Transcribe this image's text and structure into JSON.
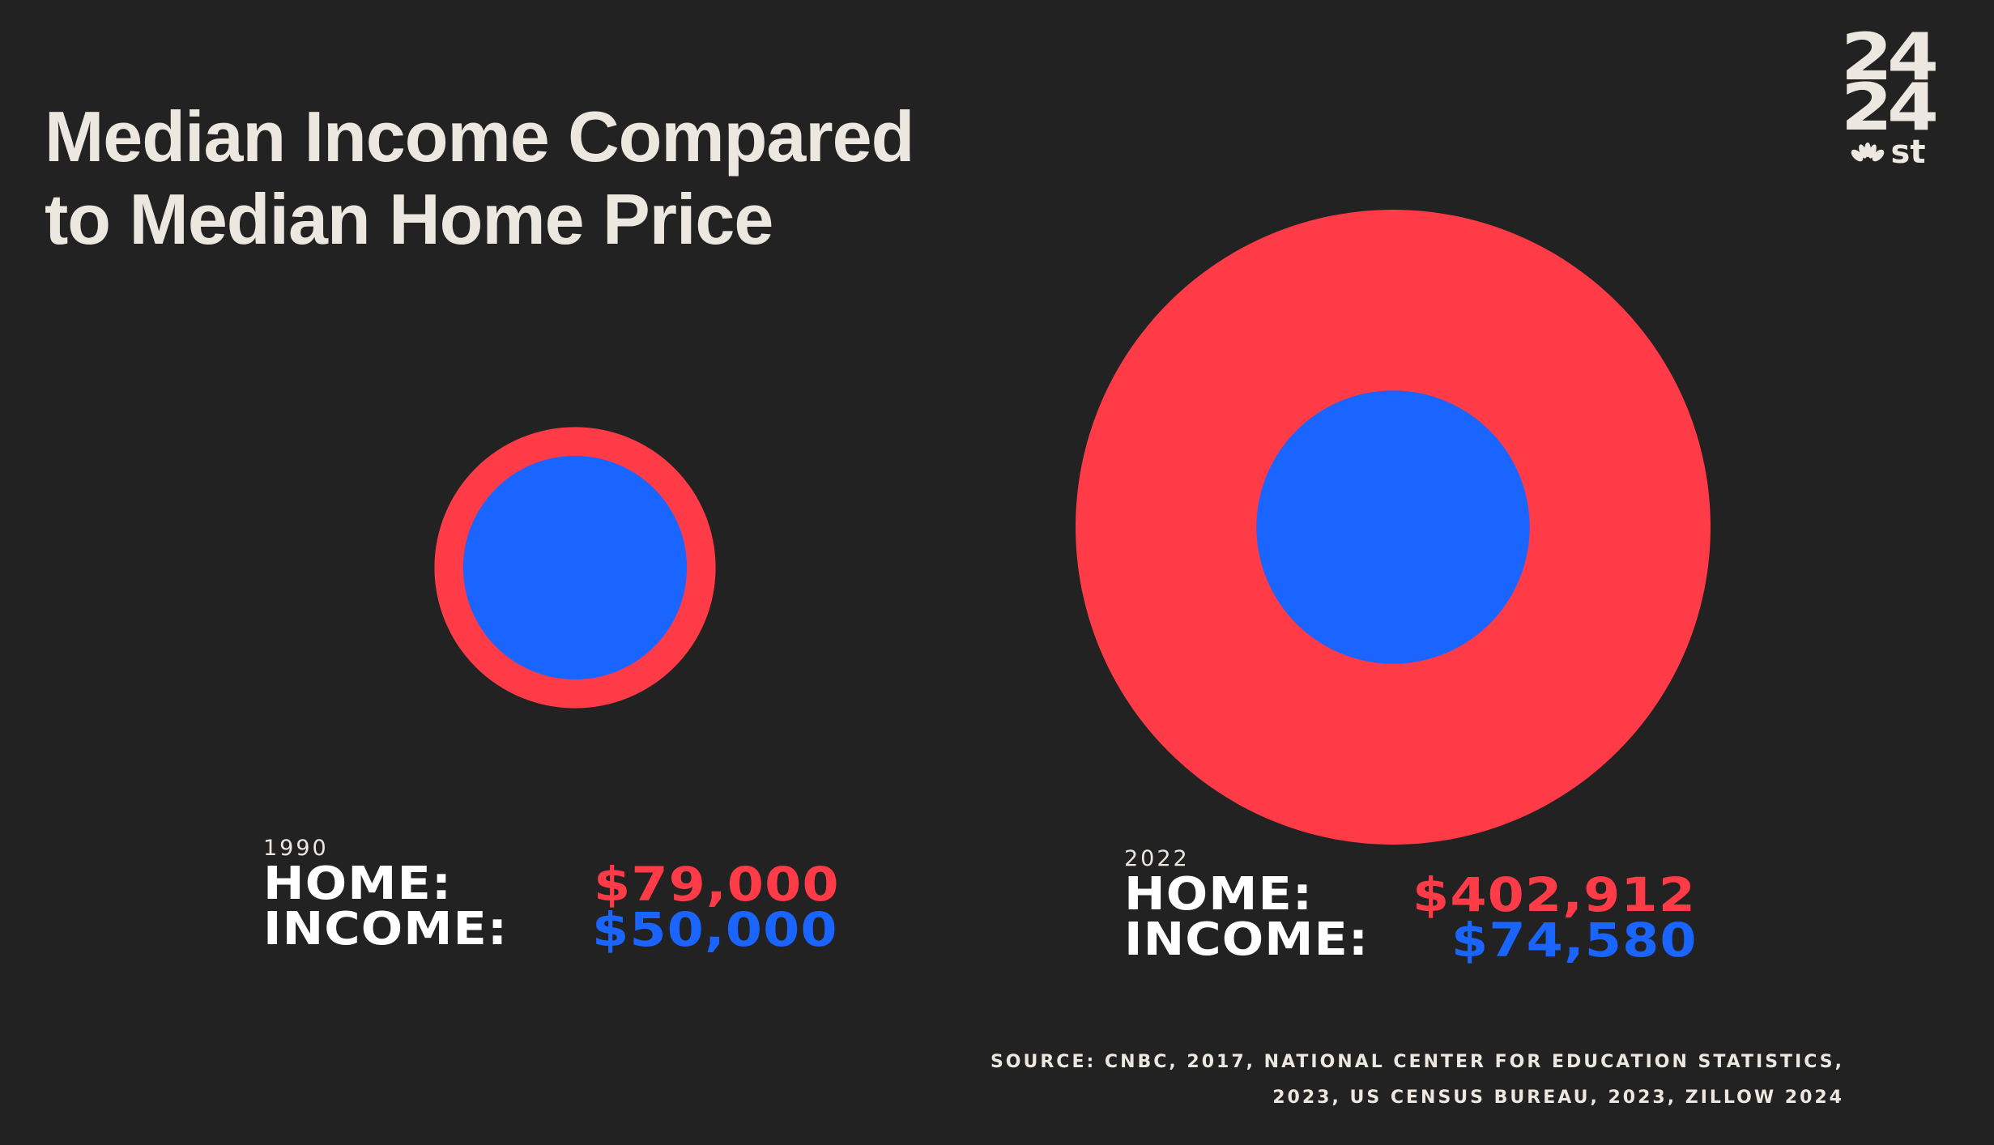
{
  "chart_data": {
    "type": "bubble",
    "title": [
      "Median Income Compared",
      "to Median Home Price"
    ],
    "series": [
      {
        "year": "1990",
        "home_label": "HOME:",
        "income_label": "INCOME:",
        "home_value": 79000,
        "income_value": 50000,
        "home_text": "$79,000",
        "income_text": "$50,000"
      },
      {
        "year": "2022",
        "home_label": "HOME:",
        "income_label": "INCOME:",
        "home_value": 402912,
        "income_value": 74580,
        "home_text": "$402,912",
        "income_text": "$74,580"
      }
    ],
    "colors": {
      "background": "#222222",
      "home": "#ff3b47",
      "income": "#1a64ff",
      "text": "#ece7df"
    }
  },
  "logo": {
    "line1": "24",
    "line2": "24",
    "brand_text": "st",
    "icon": "nbc-peacock-icon"
  },
  "source": {
    "line1": "SOURCE: CNBC, 2017, NATIONAL CENTER FOR EDUCATION STATISTICS,",
    "line2": "2023, US CENSUS BUREAU, 2023,  ZILLOW 2024"
  }
}
